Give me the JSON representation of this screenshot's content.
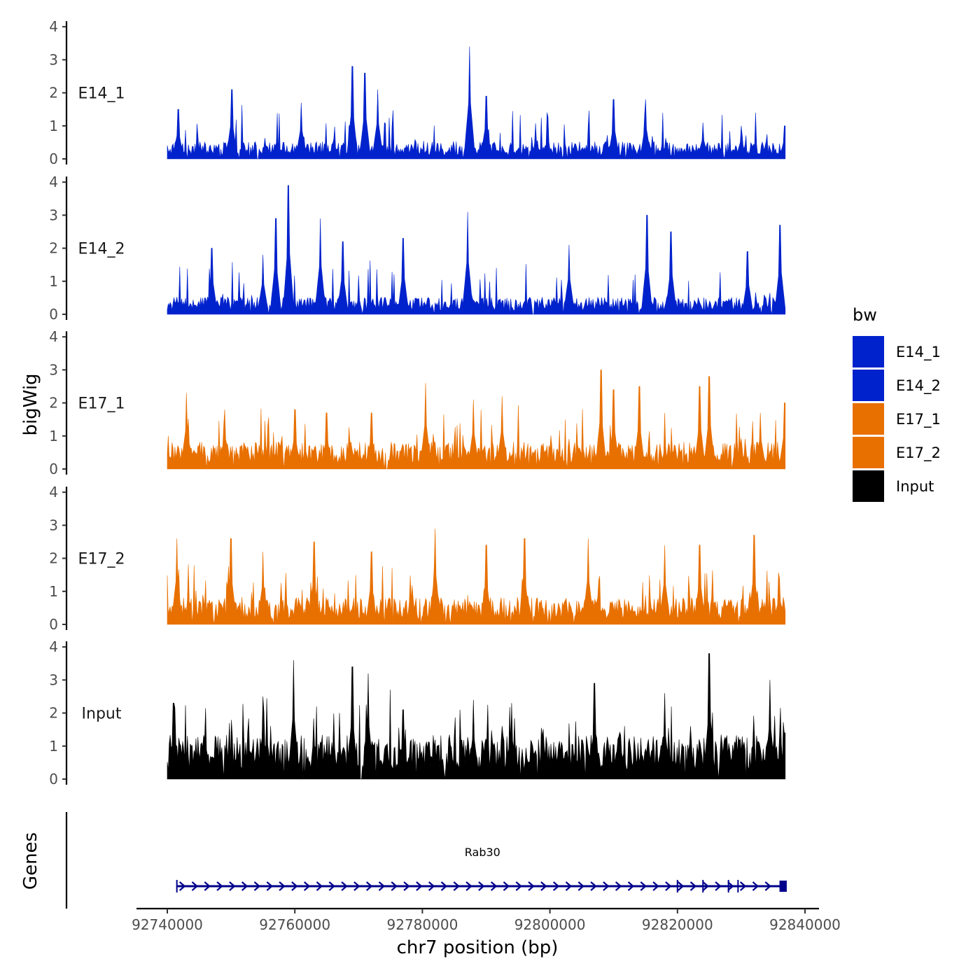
{
  "chart_data": {
    "type": "area",
    "title": "",
    "xlabel": "chr7 position (bp)",
    "ylabel": "bigWig",
    "genes_label": "Genes",
    "xlim": [
      92740000,
      92837000
    ],
    "x_ticks": [
      92740000,
      92760000,
      92780000,
      92800000,
      92820000,
      92840000
    ],
    "x_tick_labels": [
      "92740000",
      "92760000",
      "92780000",
      "92800000",
      "92820000",
      "92840000"
    ],
    "ylim": [
      0,
      4
    ],
    "y_ticks": [
      0,
      1,
      2,
      3,
      4
    ],
    "y_tick_labels": [
      "0",
      "1",
      "2",
      "3",
      "4"
    ],
    "legend": {
      "title": "bw",
      "position": "right",
      "entries": [
        {
          "label": "E14_1",
          "color": "#0022cc"
        },
        {
          "label": "E14_2",
          "color": "#0022cc"
        },
        {
          "label": "E17_1",
          "color": "#e87000"
        },
        {
          "label": "E17_2",
          "color": "#e87000"
        },
        {
          "label": "Input",
          "color": "#000000"
        }
      ]
    },
    "series": [
      {
        "name": "E14_1",
        "color": "#0022cc",
        "peaks": [
          [
            92741700,
            1.5
          ],
          [
            92750100,
            2.1
          ],
          [
            92761000,
            1.7
          ],
          [
            92769000,
            2.8
          ],
          [
            92771000,
            2.6
          ],
          [
            92773000,
            2.1
          ],
          [
            92787400,
            3.4
          ],
          [
            92790000,
            1.9
          ],
          [
            92810000,
            1.8
          ],
          [
            92815000,
            1.8
          ],
          [
            92824000,
            1.1
          ],
          [
            92830000,
            1.0
          ],
          [
            92836800,
            1.0
          ]
        ]
      },
      {
        "name": "E14_2",
        "color": "#0022cc",
        "peaks": [
          [
            92747000,
            2.0
          ],
          [
            92755000,
            1.8
          ],
          [
            92757000,
            2.9
          ],
          [
            92759000,
            3.9
          ],
          [
            92764000,
            2.9
          ],
          [
            92767500,
            2.2
          ],
          [
            92777000,
            2.3
          ],
          [
            92787100,
            3.1
          ],
          [
            92803000,
            2.1
          ],
          [
            92815200,
            3.0
          ],
          [
            92819000,
            2.5
          ],
          [
            92831000,
            1.9
          ],
          [
            92836100,
            2.7
          ]
        ]
      },
      {
        "name": "E17_1",
        "color": "#e87000",
        "peaks": [
          [
            92743000,
            2.3
          ],
          [
            92749000,
            1.8
          ],
          [
            92760000,
            1.8
          ],
          [
            92765000,
            1.7
          ],
          [
            92772000,
            1.7
          ],
          [
            92780500,
            2.6
          ],
          [
            92788000,
            2.1
          ],
          [
            92792500,
            2.2
          ],
          [
            92808000,
            3.0
          ],
          [
            92810000,
            2.4
          ],
          [
            92814000,
            2.5
          ],
          [
            92823500,
            2.5
          ],
          [
            92825000,
            2.8
          ],
          [
            92833000,
            1.7
          ],
          [
            92836800,
            2.0
          ]
        ]
      },
      {
        "name": "E17_2",
        "color": "#e87000",
        "peaks": [
          [
            92741500,
            2.6
          ],
          [
            92750000,
            2.6
          ],
          [
            92755000,
            2.2
          ],
          [
            92763000,
            2.5
          ],
          [
            92772000,
            2.2
          ],
          [
            92782000,
            2.9
          ],
          [
            92790000,
            2.4
          ],
          [
            92796000,
            2.6
          ],
          [
            92806000,
            2.6
          ],
          [
            92818000,
            2.4
          ],
          [
            92823500,
            2.4
          ],
          [
            92832000,
            2.7
          ],
          [
            92836000,
            1.4
          ]
        ]
      },
      {
        "name": "Input",
        "color": "#000000",
        "peaks": [
          [
            92741000,
            2.3
          ],
          [
            92755000,
            2.5
          ],
          [
            92759800,
            3.6
          ],
          [
            92769000,
            3.4
          ],
          [
            92771500,
            3.2
          ],
          [
            92777000,
            2.1
          ],
          [
            92788000,
            2.4
          ],
          [
            92794000,
            2.3
          ],
          [
            92807000,
            2.9
          ],
          [
            92818000,
            2.6
          ],
          [
            92825000,
            3.8
          ],
          [
            92834500,
            3.0
          ],
          [
            92836800,
            1.4
          ]
        ]
      }
    ],
    "gene": {
      "name": "Rab30",
      "start": 92741500,
      "end": 92836700,
      "strand": "+",
      "color": "#00008b",
      "exons": [
        92741500,
        92820000,
        92824000,
        92828000,
        92829500,
        92836000
      ]
    }
  }
}
